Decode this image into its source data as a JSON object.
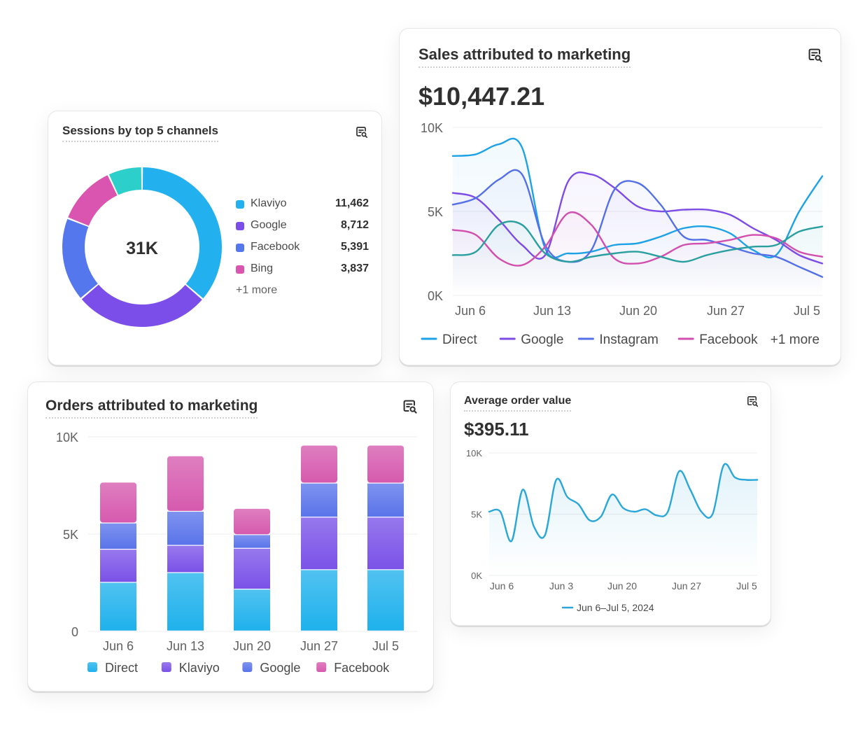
{
  "sessions": {
    "title": "Sessions by top 5 channels",
    "total_label": "31K",
    "icon": "report-search-icon",
    "legend": [
      {
        "label": "Klaviyo",
        "value": "11,462",
        "color": "#22b0ee"
      },
      {
        "label": "Google",
        "value": "8,712",
        "color": "#7b4eea"
      },
      {
        "label": "Facebook",
        "value": "5,391",
        "color": "#5577ee"
      },
      {
        "label": "Bing",
        "value": "3,837",
        "color": "#d955b0"
      }
    ],
    "more_label": "+1 more"
  },
  "sales": {
    "title": "Sales attributed to marketing",
    "value": "$10,447.21",
    "icon": "report-search-icon",
    "legend_more": "+1 more"
  },
  "orders": {
    "title": "Orders attributed to marketing",
    "icon": "report-search-icon"
  },
  "aov": {
    "title": "Average order value",
    "value": "$395.11",
    "icon": "report-search-icon",
    "legend_label": "Jun 6–Jul 5, 2024",
    "line_color": "#2aa7d8"
  },
  "chart_data": [
    {
      "id": "sessions",
      "type": "pie",
      "title": "Sessions by top 5 channels",
      "center_label": "31K",
      "slices": [
        {
          "name": "Klaviyo",
          "value": 11462,
          "color": "#22b0ee"
        },
        {
          "name": "Google",
          "value": 8712,
          "color": "#7b4eea"
        },
        {
          "name": "Facebook",
          "value": 5391,
          "color": "#5577ee"
        },
        {
          "name": "Bing",
          "value": 3837,
          "color": "#d955b0"
        },
        {
          "name": "",
          "value": 2200,
          "color": "#2ccfc9"
        }
      ]
    },
    {
      "id": "sales",
      "type": "line",
      "title": "Sales attributed to marketing",
      "x_ticks": [
        "Jun 6",
        "Jun 13",
        "Jun 20",
        "Jun 27",
        "Jul 5"
      ],
      "y_ticks": [
        "10K",
        "5K",
        "0K"
      ],
      "ylim": [
        0,
        10000
      ],
      "grid": true,
      "legend_position": "bottom",
      "x": [
        0,
        3,
        6,
        9,
        12,
        15,
        18,
        21,
        24,
        27,
        30,
        33,
        36,
        39,
        42,
        45,
        48
      ],
      "series": [
        {
          "name": "Direct",
          "color": "#1ea2e6",
          "values": [
            8300,
            8400,
            9000,
            8800,
            2800,
            2500,
            2600,
            3000,
            3100,
            3500,
            4000,
            4100,
            3700,
            2700,
            2400,
            5000,
            7100
          ]
        },
        {
          "name": "Google",
          "color": "#7d4be6",
          "values": [
            6100,
            5800,
            4500,
            3000,
            2400,
            6800,
            7200,
            6400,
            5300,
            5000,
            5100,
            5100,
            4800,
            4000,
            3300,
            2400,
            1900
          ]
        },
        {
          "name": "Instagram",
          "color": "#5470e8",
          "values": [
            5400,
            5800,
            6900,
            7200,
            3000,
            2000,
            2700,
            6300,
            6700,
            5400,
            3500,
            3300,
            2900,
            2500,
            2300,
            1700,
            1100
          ]
        },
        {
          "name": "Facebook",
          "color": "#d24fb0",
          "values": [
            3900,
            3600,
            2200,
            1800,
            2900,
            4900,
            4200,
            2200,
            1900,
            2300,
            3000,
            3100,
            3300,
            3600,
            3400,
            2600,
            2300
          ]
        },
        {
          "name": "",
          "color": "#2a9fa0",
          "values": [
            2400,
            2600,
            4200,
            4200,
            2500,
            2000,
            2300,
            2500,
            2600,
            2300,
            2000,
            2400,
            2700,
            2900,
            3000,
            3800,
            4100
          ]
        }
      ]
    },
    {
      "id": "orders",
      "type": "bar",
      "stacked": true,
      "title": "Orders attributed to marketing",
      "categories": [
        "Jun 6",
        "Jun 13",
        "Jun 20",
        "Jun 27",
        "Jul 5"
      ],
      "y_ticks": [
        "10K",
        "5K",
        "0"
      ],
      "ylim": [
        0,
        10000
      ],
      "grid": true,
      "legend_position": "bottom",
      "series": [
        {
          "name": "Direct",
          "color": "#1fb1ec",
          "values": [
            2500,
            3000,
            2150,
            3150,
            3150
          ]
        },
        {
          "name": "Klaviyo",
          "color": "#7a52e8",
          "values": [
            1700,
            1400,
            2100,
            2700,
            2700
          ]
        },
        {
          "name": "Google",
          "color": "#5a74ea",
          "values": [
            1350,
            1750,
            700,
            1750,
            1750
          ]
        },
        {
          "name": "Facebook",
          "color": "#d65aae",
          "values": [
            2100,
            2850,
            1350,
            1950,
            1950
          ]
        }
      ]
    },
    {
      "id": "aov",
      "type": "line",
      "title": "Average order value",
      "x_ticks": [
        "Jun 6",
        "Jun 3",
        "Jun 20",
        "Jun 27",
        "Jul 5"
      ],
      "y_ticks": [
        "10K",
        "5K",
        "0K"
      ],
      "ylim": [
        0,
        10000
      ],
      "grid": true,
      "legend_position": "bottom",
      "x": [
        0,
        2,
        4,
        6,
        8,
        10,
        12,
        14,
        16,
        18,
        20,
        22,
        24,
        26,
        28,
        30,
        32,
        34,
        36,
        38,
        40,
        42,
        44,
        46,
        48
      ],
      "series": [
        {
          "name": "Jun 6–Jul 5, 2024",
          "color": "#2aa7d8",
          "values": [
            5200,
            5200,
            2800,
            7000,
            4000,
            3300,
            7800,
            6400,
            5800,
            4500,
            4800,
            6600,
            5500,
            5200,
            5400,
            4900,
            5200,
            8500,
            7000,
            5200,
            5000,
            9000,
            8000,
            7800,
            7800
          ]
        }
      ]
    }
  ]
}
